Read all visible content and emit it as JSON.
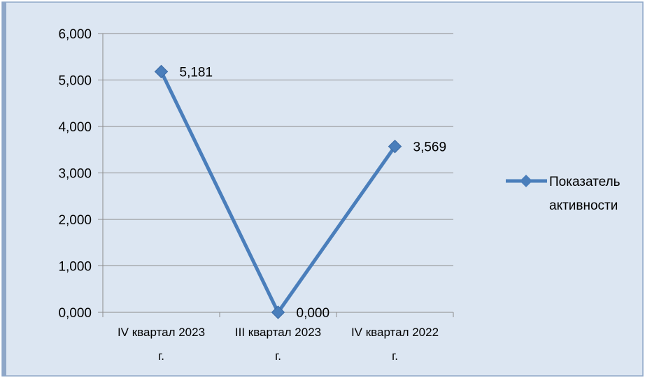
{
  "chart_data": {
    "type": "line",
    "categories": [
      [
        "IV квартал 2023",
        "г."
      ],
      [
        "III квартал 2023",
        "г."
      ],
      [
        "IV квартал 2022",
        "г."
      ]
    ],
    "series": [
      {
        "name": "Показатель активности",
        "values": [
          5.181,
          0.0,
          3.569
        ]
      }
    ],
    "data_labels": [
      "5,181",
      "0,000",
      "3,569"
    ],
    "ylim": [
      0,
      6
    ],
    "y_ticks": [
      "0,000",
      "1,000",
      "2,000",
      "3,000",
      "4,000",
      "5,000",
      "6,000"
    ],
    "legend": {
      "position": "right",
      "lines": [
        "Показатель",
        "активности"
      ]
    },
    "grid": true,
    "colors": {
      "background": "#dce6f2",
      "border": "#8ea7c8",
      "line": "#4a7ebb",
      "grid": "#8c8c8c"
    }
  }
}
